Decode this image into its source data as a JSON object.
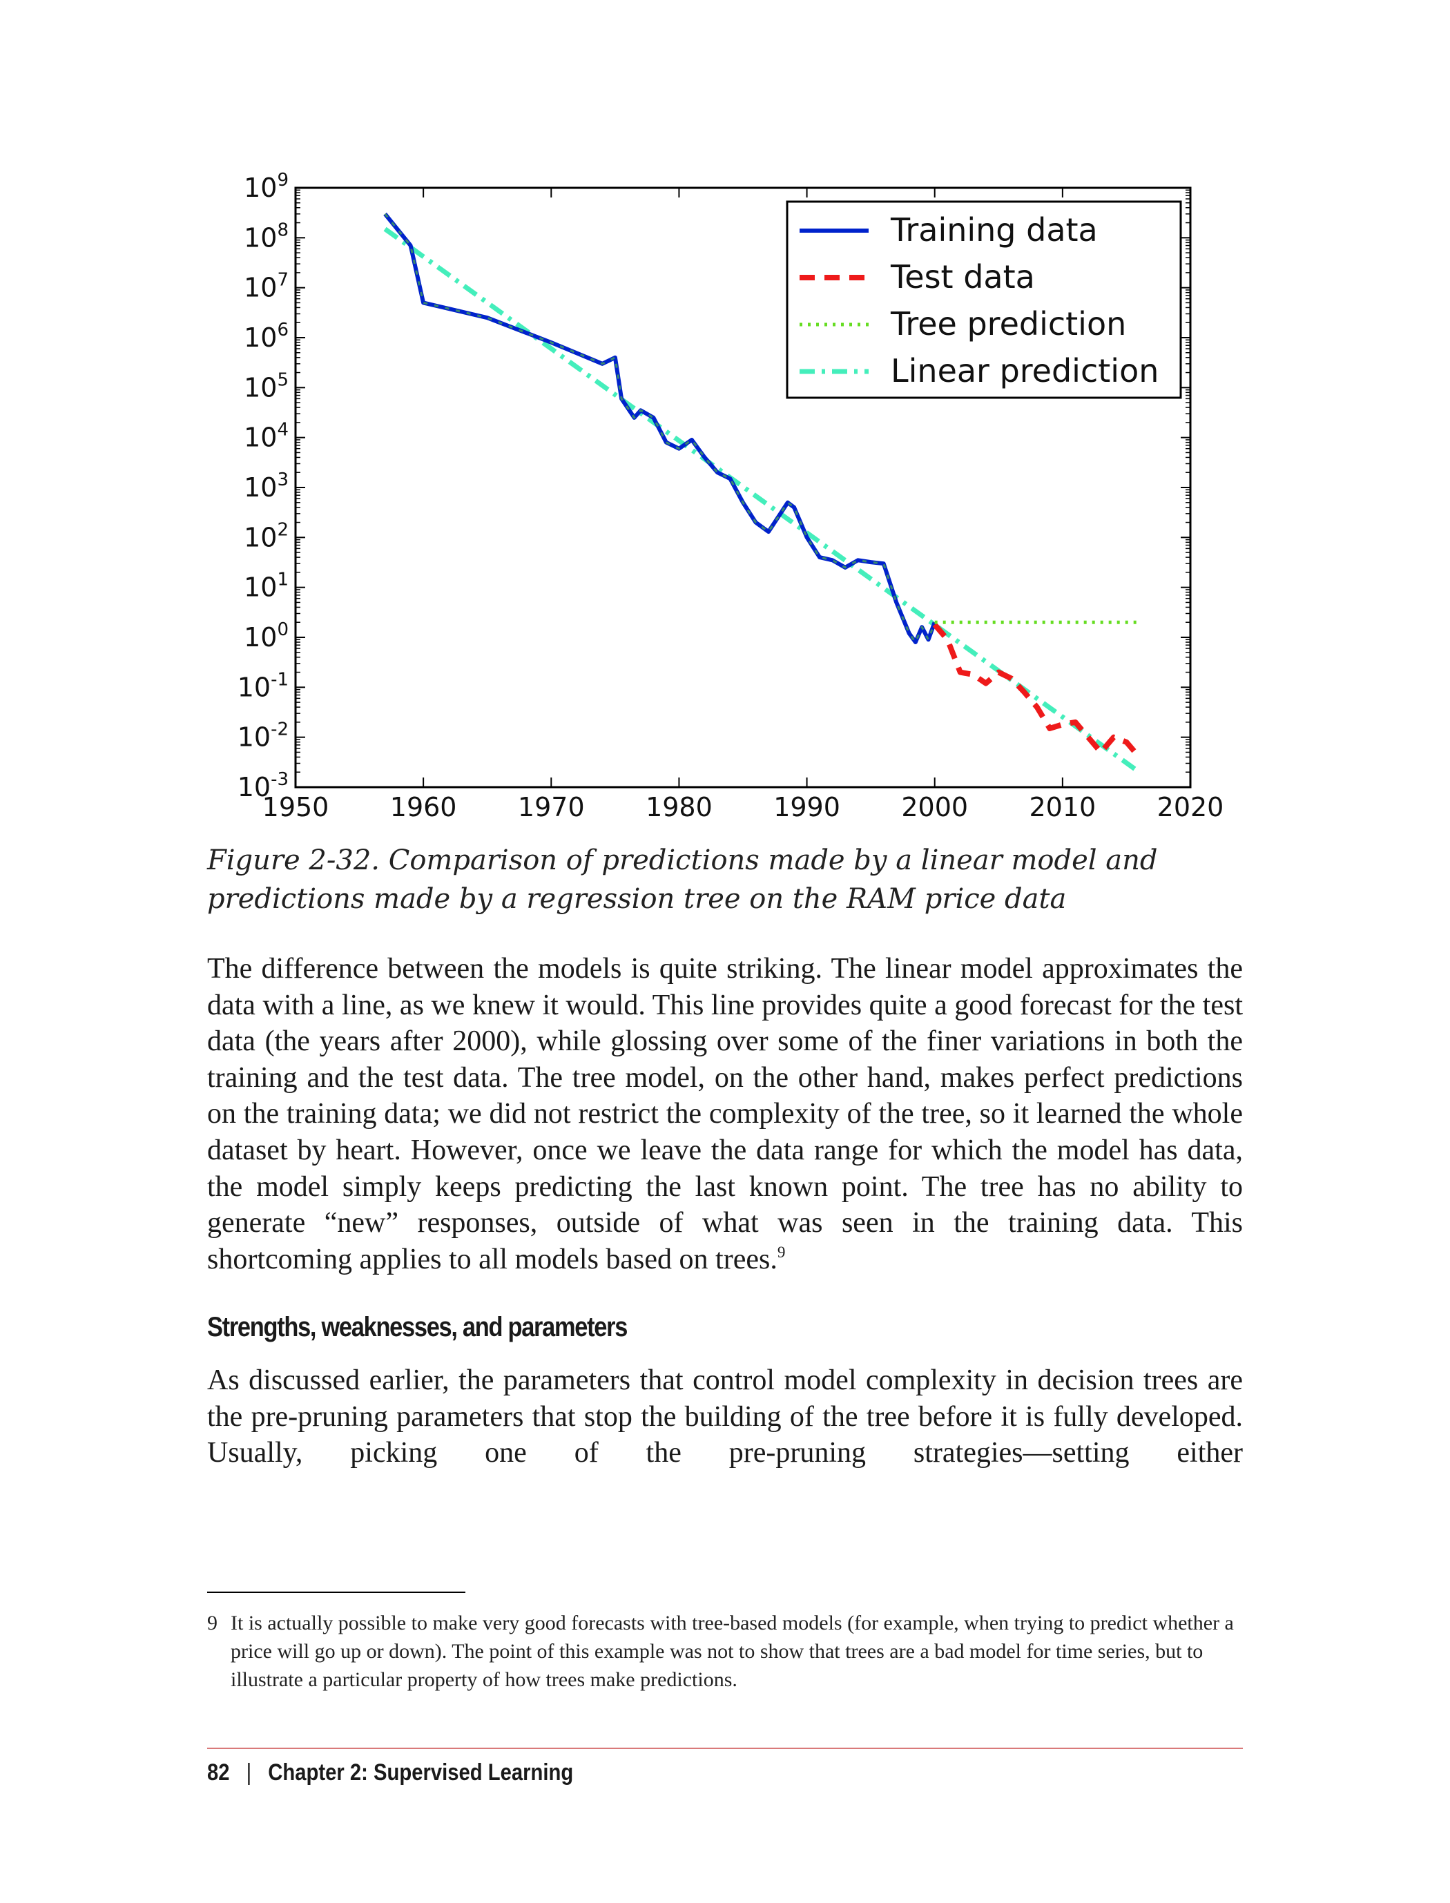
{
  "chart_data": {
    "type": "line",
    "x_ticks": [
      "1950",
      "1960",
      "1970",
      "1980",
      "1990",
      "2000",
      "2010",
      "2020"
    ],
    "xlim": [
      1950,
      2020
    ],
    "y_scale": "log",
    "ylim_exponents": [
      -3,
      9
    ],
    "y_ticks": [
      {
        "base": "10",
        "exp": "9"
      },
      {
        "base": "10",
        "exp": "8"
      },
      {
        "base": "10",
        "exp": "7"
      },
      {
        "base": "10",
        "exp": "6"
      },
      {
        "base": "10",
        "exp": "5"
      },
      {
        "base": "10",
        "exp": "4"
      },
      {
        "base": "10",
        "exp": "3"
      },
      {
        "base": "10",
        "exp": "2"
      },
      {
        "base": "10",
        "exp": "1"
      },
      {
        "base": "10",
        "exp": "0"
      },
      {
        "base": "10",
        "exp": "-1"
      },
      {
        "base": "10",
        "exp": "-2"
      },
      {
        "base": "10",
        "exp": "-3"
      }
    ],
    "legend_position": "top-right",
    "series": [
      {
        "name": "Training data",
        "color": "#0022cc",
        "style": "solid",
        "x": [
          1957,
          1959,
          1960,
          1965,
          1970,
          1974,
          1975,
          1975.5,
          1976.5,
          1977,
          1978,
          1979,
          1980,
          1981,
          1982,
          1983,
          1984,
          1985,
          1986,
          1987,
          1988.5,
          1989,
          1990,
          1991,
          1992,
          1993,
          1994,
          1995,
          1996,
          1997,
          1998,
          1998.5,
          1999,
          1999.5,
          2000
        ],
        "y": [
          300000000,
          70000000,
          5000000,
          2500000,
          800000,
          300000,
          400000,
          60000,
          25000,
          35000,
          25000,
          8000,
          6000,
          9000,
          4000,
          2000,
          1500,
          500,
          200,
          130,
          500,
          400,
          100,
          40,
          35,
          25,
          35,
          32,
          30,
          5,
          1.2,
          0.8,
          1.6,
          0.9,
          2.0
        ]
      },
      {
        "name": "Test data",
        "color": "#ee1a1a",
        "style": "dashed",
        "x": [
          2000,
          2001,
          2002,
          2003,
          2004,
          2005,
          2006,
          2007,
          2008,
          2009,
          2010,
          2011,
          2012,
          2013,
          2014,
          2015,
          2016
        ],
        "y": [
          1.8,
          0.9,
          0.2,
          0.18,
          0.12,
          0.2,
          0.15,
          0.08,
          0.04,
          0.015,
          0.018,
          0.02,
          0.01,
          0.005,
          0.01,
          0.008,
          0.004
        ]
      },
      {
        "name": "Tree prediction",
        "color": "#66dd22",
        "style": "dotted",
        "x": [
          2000,
          2016
        ],
        "y": [
          2.0,
          2.0
        ]
      },
      {
        "name": "Linear prediction",
        "color": "#44eebb",
        "style": "dashdot",
        "x": [
          1957,
          2016
        ],
        "y": [
          150000000,
          0.002
        ]
      }
    ]
  },
  "caption": "Figure 2-32. Comparison of predictions made by a linear model and predictions made by a regression tree on the RAM price data",
  "para1": "The difference between the models is quite striking. The linear model approximates the data with a line, as we knew it would. This line provides quite a good forecast for the test data (the years after 2000), while glossing over some of the finer variations in both the training and the test data. The tree model, on the other hand, makes perfect predictions on the training data; we did not restrict the complexity of the tree, so it learned the whole dataset by heart. However, once we leave the data range for which the model has data, the model simply keeps predicting the last known point. The tree has no ability to generate “new” responses, outside of what was seen in the training data. This shortcoming applies to all models based on trees.",
  "para1_footnote_ref": "9",
  "section_heading": "Strengths, weaknesses, and parameters",
  "para2": "As discussed earlier, the parameters that control model complexity in decision trees are the pre-pruning parameters that stop the building of the tree before it is fully developed. Usually, picking one of the pre-pruning strategies—setting either",
  "footnote": {
    "number": "9",
    "text": "It is actually possible to make very good forecasts with tree-based models (for example, when trying to predict whether a price will go up or down). The point of this example was not to show that trees are a bad model for time series, but to illustrate a particular property of how trees make predictions."
  },
  "footer": {
    "page_number": "82",
    "separator": "|",
    "chapter": "Chapter 2: Supervised Learning"
  }
}
